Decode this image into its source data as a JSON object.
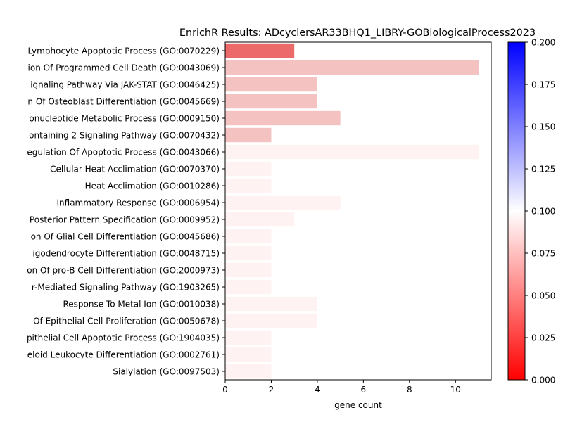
{
  "chart_data": {
    "type": "bar",
    "orientation": "horizontal",
    "title": "EnrichR Results: ADcyclersAR33BHQ1_LIBRY-GOBiologicalProcess2023",
    "xlabel": "gene count",
    "ylabel": "",
    "xlim": [
      0,
      11.55
    ],
    "x_ticks": [
      "0",
      "2",
      "4",
      "6",
      "8",
      "10"
    ],
    "grid": false,
    "categories": [
      "Lymphocyte Apoptotic Process (GO:0070229)",
      "ion Of Programmed Cell Death (GO:0043069)",
      "ignaling Pathway Via JAK-STAT (GO:0046425)",
      "n Of Osteoblast Differentiation (GO:0045669)",
      "onucleotide Metabolic Process (GO:0009150)",
      "ontaining 2 Signaling Pathway (GO:0070432)",
      "egulation Of Apoptotic Process (GO:0043066)",
      "Cellular Heat Acclimation (GO:0070370)",
      "Heat Acclimation (GO:0010286)",
      "Inflammatory Response (GO:0006954)",
      "Posterior Pattern Specification (GO:0009952)",
      "on Of Glial Cell Differentiation (GO:0045686)",
      "igodendrocyte Differentiation (GO:0048715)",
      "on Of pro-B Cell Differentiation (GO:2000973)",
      "r-Mediated Signaling Pathway (GO:1903265)",
      "Response To Metal Ion (GO:0010038)",
      "Of Epithelial Cell Proliferation (GO:0050678)",
      "pithelial Cell Apoptotic Process (GO:1904035)",
      "eloid Leukocyte Differentiation (GO:0002761)",
      "Sialylation (GO:0097503)"
    ],
    "values": [
      3,
      11,
      4,
      4,
      5,
      2,
      11,
      2,
      2,
      5,
      3,
      2,
      2,
      2,
      2,
      4,
      4,
      2,
      2,
      2
    ],
    "colors": [
      "#ec6a6a",
      "#f5c2c2",
      "#f5c2c2",
      "#f5c2c2",
      "#f5c2c2",
      "#f5c2c2",
      "#fff2f2",
      "#fff2f2",
      "#fff2f2",
      "#fff2f2",
      "#fff2f2",
      "#fff2f2",
      "#fff2f2",
      "#fff2f2",
      "#fff2f2",
      "#fff2f2",
      "#fff2f2",
      "#fff2f2",
      "#fff2f2",
      "#fff2f2"
    ],
    "colorbar": {
      "range": [
        0.0,
        0.2
      ],
      "ticks": [
        "0.000",
        "0.025",
        "0.050",
        "0.075",
        "0.100",
        "0.125",
        "0.150",
        "0.175",
        "0.200"
      ],
      "colormap": "bwr_r",
      "colors": [
        "#ff0000",
        "#ffffff",
        "#0000ff"
      ]
    }
  }
}
